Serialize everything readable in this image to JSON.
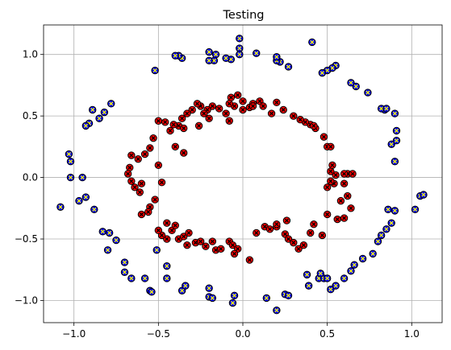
{
  "chart_data": {
    "type": "scatter",
    "title": "Testing",
    "xlabel": "",
    "ylabel": "",
    "xlim": [
      -1.18,
      1.18
    ],
    "ylim": [
      -1.18,
      1.24
    ],
    "grid": true,
    "xticks": [
      -1.0,
      -0.5,
      0.0,
      0.5,
      1.0
    ],
    "xtick_labels": [
      "−1.0",
      "−0.5",
      "0.0",
      "0.5",
      "1.0"
    ],
    "yticks": [
      1.0,
      0.5,
      0.0,
      -0.5,
      -1.0
    ],
    "ytick_labels": [
      "1.0",
      "0.5",
      "0.0",
      "−0.5",
      "−1.0"
    ],
    "series": [
      {
        "marker": "circle-x",
        "face_color": "#ff0000",
        "edge_color": "#000000",
        "cross_color": "#000000",
        "points": [
          [
            -0.07,
            0.65
          ],
          [
            -0.03,
            0.67
          ],
          [
            0.0,
            0.62
          ],
          [
            0.04,
            0.57
          ],
          [
            0.06,
            0.6
          ],
          [
            0.1,
            0.62
          ],
          [
            0.12,
            0.58
          ],
          [
            -0.14,
            0.56
          ],
          [
            -0.18,
            0.58
          ],
          [
            -0.21,
            0.55
          ],
          [
            -0.23,
            0.52
          ],
          [
            -0.25,
            0.58
          ],
          [
            -0.27,
            0.6
          ],
          [
            -0.3,
            0.55
          ],
          [
            -0.33,
            0.52
          ],
          [
            -0.36,
            0.48
          ],
          [
            -0.38,
            0.42
          ],
          [
            -0.41,
            0.43
          ],
          [
            -0.43,
            0.38
          ],
          [
            -0.46,
            0.45
          ],
          [
            -0.5,
            0.46
          ],
          [
            -0.53,
            0.32
          ],
          [
            -0.55,
            0.24
          ],
          [
            -0.58,
            0.19
          ],
          [
            -0.62,
            0.15
          ],
          [
            -0.66,
            0.18
          ],
          [
            -0.67,
            0.08
          ],
          [
            -0.68,
            0.03
          ],
          [
            -0.66,
            -0.03
          ],
          [
            -0.64,
            -0.08
          ],
          [
            -0.61,
            -0.12
          ],
          [
            -0.6,
            -0.05
          ],
          [
            -0.5,
            0.1
          ],
          [
            -0.48,
            -0.04
          ],
          [
            -0.52,
            -0.18
          ],
          [
            -0.55,
            -0.24
          ],
          [
            -0.56,
            -0.28
          ],
          [
            -0.6,
            -0.3
          ],
          [
            -0.45,
            -0.37
          ],
          [
            -0.42,
            -0.43
          ],
          [
            -0.4,
            -0.39
          ],
          [
            -0.45,
            -0.5
          ],
          [
            -0.48,
            -0.47
          ],
          [
            -0.38,
            -0.5
          ],
          [
            -0.35,
            -0.48
          ],
          [
            -0.33,
            -0.55
          ],
          [
            -0.28,
            -0.53
          ],
          [
            -0.25,
            -0.52
          ],
          [
            -0.22,
            -0.56
          ],
          [
            -0.18,
            -0.52
          ],
          [
            -0.16,
            -0.59
          ],
          [
            -0.13,
            -0.58
          ],
          [
            -0.08,
            -0.52
          ],
          [
            -0.06,
            -0.55
          ],
          [
            -0.03,
            -0.58
          ],
          [
            -0.05,
            -0.62
          ],
          [
            0.04,
            -0.67
          ],
          [
            0.08,
            -0.45
          ],
          [
            0.13,
            -0.4
          ],
          [
            0.16,
            -0.42
          ],
          [
            0.2,
            -0.4
          ],
          [
            0.25,
            -0.46
          ],
          [
            0.27,
            -0.5
          ],
          [
            0.3,
            -0.53
          ],
          [
            0.33,
            -0.58
          ],
          [
            0.36,
            -0.55
          ],
          [
            0.4,
            -0.45
          ],
          [
            0.42,
            -0.38
          ],
          [
            0.47,
            -0.47
          ],
          [
            0.5,
            -0.3
          ],
          [
            0.56,
            -0.34
          ],
          [
            0.6,
            -0.33
          ],
          [
            0.64,
            -0.25
          ],
          [
            0.58,
            -0.19
          ],
          [
            0.62,
            -0.15
          ],
          [
            0.6,
            -0.05
          ],
          [
            0.54,
            -0.05
          ],
          [
            0.5,
            -0.08
          ],
          [
            0.52,
            -0.03
          ],
          [
            0.55,
            0.02
          ],
          [
            0.62,
            0.03
          ],
          [
            0.65,
            0.03
          ],
          [
            0.6,
            0.03
          ],
          [
            0.52,
            0.05
          ],
          [
            0.53,
            0.1
          ],
          [
            0.5,
            0.25
          ],
          [
            0.52,
            0.25
          ],
          [
            0.48,
            0.33
          ],
          [
            0.43,
            0.4
          ],
          [
            0.4,
            0.43
          ],
          [
            0.37,
            0.45
          ],
          [
            0.34,
            0.47
          ],
          [
            0.3,
            0.5
          ],
          [
            0.24,
            0.55
          ],
          [
            0.2,
            0.61
          ],
          [
            0.17,
            0.52
          ],
          [
            0.06,
            0.58
          ],
          [
            0.0,
            0.55
          ],
          [
            -0.05,
            0.58
          ],
          [
            -0.08,
            0.6
          ],
          [
            -0.1,
            0.52
          ],
          [
            -0.08,
            0.46
          ],
          [
            -0.2,
            0.48
          ],
          [
            -0.26,
            0.42
          ],
          [
            -0.35,
            0.4
          ],
          [
            -0.4,
            0.25
          ],
          [
            -0.35,
            0.2
          ],
          [
            -0.32,
            -0.45
          ],
          [
            -0.5,
            -0.43
          ],
          [
            0.2,
            -0.38
          ],
          [
            0.26,
            -0.35
          ],
          [
            0.42,
            0.42
          ]
        ]
      },
      {
        "marker": "circle-x",
        "face_color": "#0000ff",
        "edge_color": "#000000",
        "cross_color": "#ffff00",
        "points": [
          [
            -1.08,
            -0.24
          ],
          [
            -1.03,
            0.19
          ],
          [
            -1.02,
            0.13
          ],
          [
            -1.02,
            0.0
          ],
          [
            -0.97,
            -0.19
          ],
          [
            -0.93,
            -0.16
          ],
          [
            -0.95,
            0.0
          ],
          [
            -0.91,
            0.44
          ],
          [
            -0.93,
            0.42
          ],
          [
            -0.89,
            0.55
          ],
          [
            -0.85,
            0.48
          ],
          [
            -0.82,
            0.53
          ],
          [
            -0.78,
            0.6
          ],
          [
            -0.88,
            -0.26
          ],
          [
            -0.83,
            -0.44
          ],
          [
            -0.79,
            -0.45
          ],
          [
            -0.8,
            -0.59
          ],
          [
            -0.75,
            -0.51
          ],
          [
            -0.7,
            -0.69
          ],
          [
            -0.7,
            -0.77
          ],
          [
            -0.66,
            -0.82
          ],
          [
            -0.58,
            -0.82
          ],
          [
            -0.55,
            -0.92
          ],
          [
            -0.54,
            -0.93
          ],
          [
            -0.45,
            -0.72
          ],
          [
            -0.45,
            -0.82
          ],
          [
            -0.36,
            -0.92
          ],
          [
            -0.34,
            -0.88
          ],
          [
            -0.2,
            -0.9
          ],
          [
            -0.2,
            -0.97
          ],
          [
            -0.18,
            -0.98
          ],
          [
            -0.06,
            -1.02
          ],
          [
            -0.05,
            -0.96
          ],
          [
            0.14,
            -0.98
          ],
          [
            0.2,
            -1.08
          ],
          [
            0.25,
            -0.95
          ],
          [
            0.27,
            -0.96
          ],
          [
            0.39,
            -0.88
          ],
          [
            0.38,
            -0.79
          ],
          [
            0.45,
            -0.82
          ],
          [
            0.48,
            -0.82
          ],
          [
            0.5,
            -0.82
          ],
          [
            0.52,
            -0.91
          ],
          [
            0.55,
            -0.88
          ],
          [
            0.6,
            -0.82
          ],
          [
            0.64,
            -0.76
          ],
          [
            0.66,
            -0.71
          ],
          [
            0.71,
            -0.66
          ],
          [
            0.77,
            -0.62
          ],
          [
            0.8,
            -0.52
          ],
          [
            0.82,
            -0.47
          ],
          [
            0.85,
            -0.42
          ],
          [
            0.88,
            -0.37
          ],
          [
            0.86,
            -0.26
          ],
          [
            0.9,
            -0.27
          ],
          [
            1.02,
            -0.26
          ],
          [
            1.05,
            -0.15
          ],
          [
            1.07,
            -0.14
          ],
          [
            0.9,
            0.13
          ],
          [
            0.88,
            0.27
          ],
          [
            0.91,
            0.3
          ],
          [
            0.91,
            0.38
          ],
          [
            0.84,
            0.55
          ],
          [
            0.82,
            0.56
          ],
          [
            0.85,
            0.56
          ],
          [
            0.9,
            0.52
          ],
          [
            0.74,
            0.69
          ],
          [
            0.67,
            0.74
          ],
          [
            0.64,
            0.77
          ],
          [
            0.55,
            0.91
          ],
          [
            0.53,
            0.89
          ],
          [
            0.5,
            0.87
          ],
          [
            0.47,
            0.85
          ],
          [
            0.41,
            1.1
          ],
          [
            0.27,
            0.9
          ],
          [
            0.22,
            0.94
          ],
          [
            0.2,
            0.95
          ],
          [
            0.2,
            0.98
          ],
          [
            0.08,
            1.01
          ],
          [
            -0.02,
            1.13
          ],
          [
            -0.02,
            1.05
          ],
          [
            -0.02,
            1.0
          ],
          [
            -0.07,
            0.96
          ],
          [
            -0.1,
            0.97
          ],
          [
            -0.16,
            1.0
          ],
          [
            -0.17,
            0.95
          ],
          [
            -0.2,
            1.02
          ],
          [
            -0.2,
            0.95
          ],
          [
            -0.36,
            0.97
          ],
          [
            -0.38,
            0.99
          ],
          [
            -0.4,
            0.99
          ],
          [
            -0.52,
            0.87
          ],
          [
            -0.51,
            -0.59
          ],
          [
            0.46,
            -0.78
          ]
        ]
      }
    ]
  }
}
